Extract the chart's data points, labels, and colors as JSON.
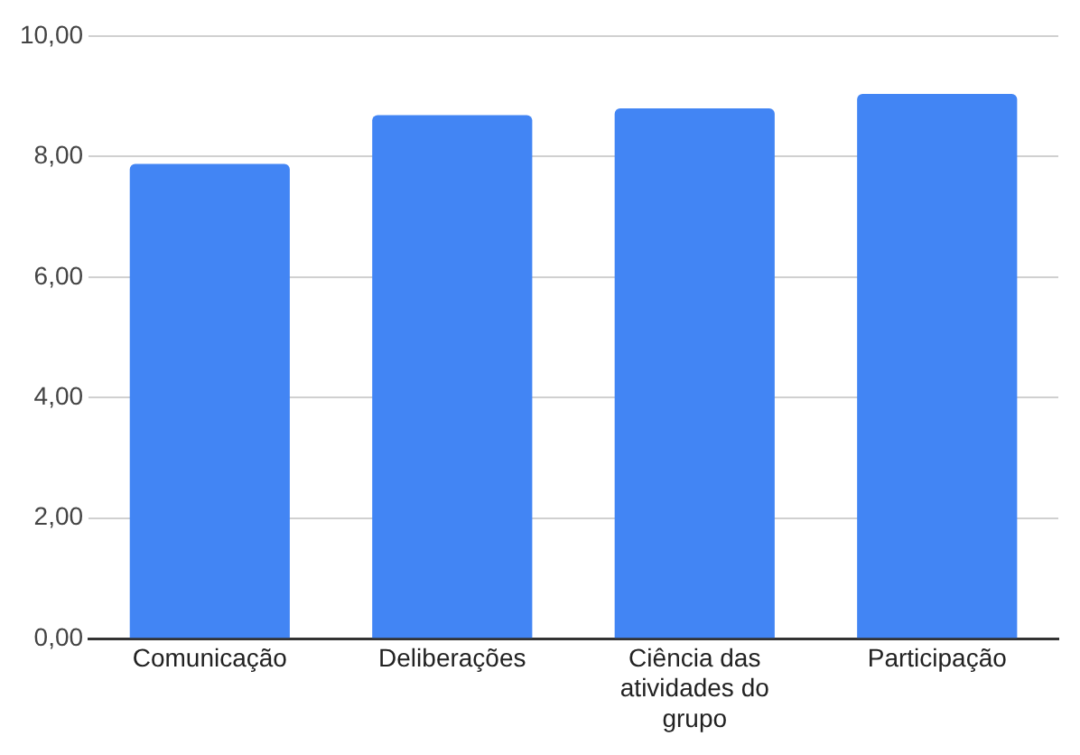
{
  "chart_data": {
    "type": "bar",
    "categories": [
      "Comunicação",
      "Deliberações",
      "Ciência das atividades do grupo",
      "Participação"
    ],
    "values": [
      7.88,
      8.69,
      8.8,
      9.04
    ],
    "color": "#4285f4",
    "ylim": [
      0,
      10
    ],
    "yticks": [
      {
        "value": 0,
        "label": "0,00"
      },
      {
        "value": 2,
        "label": "2,00"
      },
      {
        "value": 4,
        "label": "4,00"
      },
      {
        "value": 6,
        "label": "6,00"
      },
      {
        "value": 8,
        "label": "8,00"
      },
      {
        "value": 10,
        "label": "10,00"
      }
    ],
    "grid": "y",
    "legend": false
  }
}
